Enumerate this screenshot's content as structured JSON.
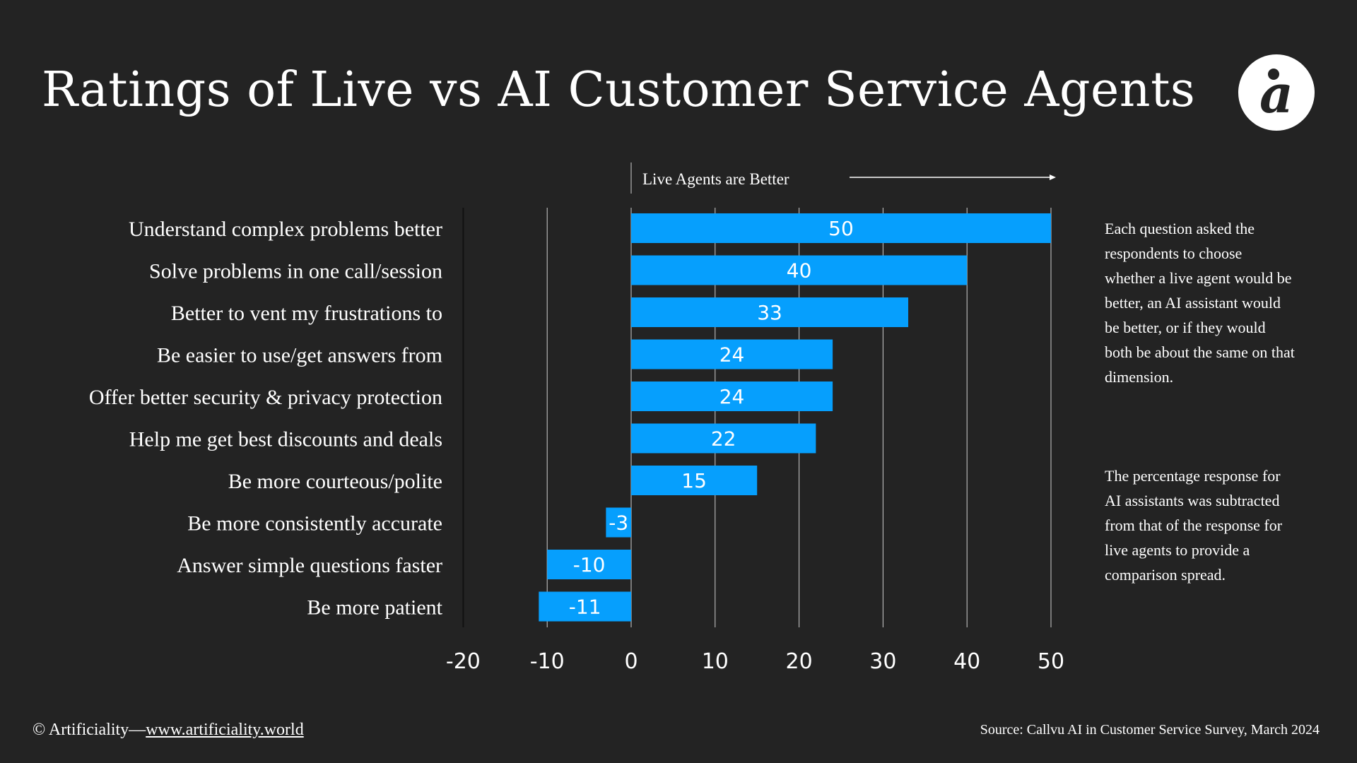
{
  "title": "Ratings of Live vs AI Customer Service Agents",
  "logo_text": "a",
  "direction_label": "Live Agents are Better",
  "notes": [
    "Each question asked the respondents to choose whether a live agent would be better, an AI assistant would be better, or if they would both be about the same on that dimension.",
    "The percentage response for AI assistants was subtracted from that of the response for live agents to provide a comparison spread."
  ],
  "footer": {
    "copyright": "© Artificiality—",
    "link": "www.artificiality.world",
    "source": "Source: Callvu  AI in Customer Service Survey, March 2024"
  },
  "colors": {
    "bar": "#069ffd",
    "background": "#232323",
    "text": "#ffffff"
  },
  "chart_data": {
    "type": "bar",
    "orientation": "horizontal",
    "categories": [
      "Understand complex problems better",
      "Solve problems in one call/session",
      "Better to vent my frustrations to",
      "Be easier to use/get answers from",
      "Offer better security & privacy protection",
      "Help me get best discounts and deals",
      "Be more courteous/polite",
      "Be more consistently accurate",
      "Answer simple questions faster",
      "Be more patient"
    ],
    "values": [
      50,
      40,
      33,
      24,
      24,
      22,
      15,
      -3,
      -10,
      -11
    ],
    "xlim": [
      -20,
      50
    ],
    "xticks": [
      "-20",
      "-10",
      "0",
      "10",
      "20",
      "30",
      "40",
      "50"
    ],
    "grid": true,
    "data_labels": true
  }
}
